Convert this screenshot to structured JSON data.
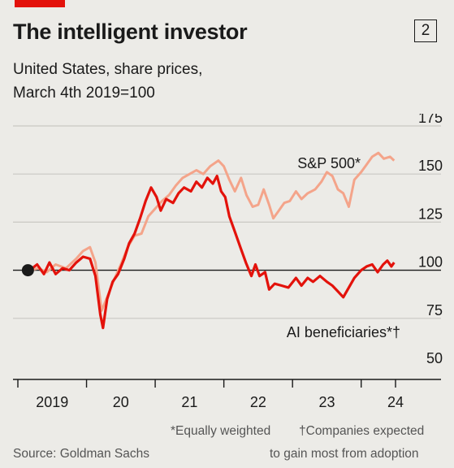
{
  "header": {
    "title": "The intelligent investor",
    "badge": "2",
    "subtitle_line1": "United States, share prices,",
    "subtitle_line2": "March 4th 2019=100"
  },
  "footnotes": {
    "equally_weighted": "*Equally weighted",
    "companies_expected_l1": "†Companies expected",
    "companies_expected_l2": "to gain most from adoption",
    "source": "Source: Goldman Sachs"
  },
  "colors": {
    "sp500": "#f4a48a",
    "ai": "#e3120b",
    "axis": "#1a1a1a",
    "grid": "#c9c8c3",
    "brand": "#e3120b"
  },
  "chart_data": {
    "type": "line",
    "x_ticks": [
      "2019",
      "20",
      "21",
      "22",
      "23",
      "24"
    ],
    "y_ticks": [
      "50",
      "75",
      "100",
      "125",
      "150",
      "175"
    ],
    "ylim": [
      50,
      175
    ],
    "xlim": [
      2019.0,
      2024.5
    ],
    "baseline": 100,
    "start_marker": {
      "x": 2019.17,
      "y": 100
    },
    "grid": true,
    "series": [
      {
        "name": "S&P 500*",
        "color": "#f4a48a",
        "points": [
          [
            2019.17,
            100
          ],
          [
            2019.3,
            101
          ],
          [
            2019.42,
            99
          ],
          [
            2019.55,
            103
          ],
          [
            2019.7,
            101
          ],
          [
            2019.85,
            106
          ],
          [
            2019.95,
            110
          ],
          [
            2020.05,
            112
          ],
          [
            2020.13,
            104
          ],
          [
            2020.22,
            79
          ],
          [
            2020.3,
            86
          ],
          [
            2020.4,
            95
          ],
          [
            2020.5,
            103
          ],
          [
            2020.6,
            112
          ],
          [
            2020.7,
            118
          ],
          [
            2020.8,
            119
          ],
          [
            2020.9,
            128
          ],
          [
            2021.0,
            132
          ],
          [
            2021.1,
            136
          ],
          [
            2021.2,
            139
          ],
          [
            2021.3,
            144
          ],
          [
            2021.4,
            148
          ],
          [
            2021.5,
            150
          ],
          [
            2021.6,
            152
          ],
          [
            2021.7,
            150
          ],
          [
            2021.8,
            154
          ],
          [
            2021.92,
            157
          ],
          [
            2022.0,
            154
          ],
          [
            2022.08,
            147
          ],
          [
            2022.16,
            141
          ],
          [
            2022.25,
            148
          ],
          [
            2022.33,
            139
          ],
          [
            2022.42,
            133
          ],
          [
            2022.5,
            134
          ],
          [
            2022.58,
            142
          ],
          [
            2022.66,
            134
          ],
          [
            2022.72,
            127
          ],
          [
            2022.8,
            131
          ],
          [
            2022.88,
            135
          ],
          [
            2022.96,
            136
          ],
          [
            2023.05,
            141
          ],
          [
            2023.13,
            137
          ],
          [
            2023.22,
            140
          ],
          [
            2023.33,
            142
          ],
          [
            2023.42,
            146
          ],
          [
            2023.5,
            151
          ],
          [
            2023.58,
            149
          ],
          [
            2023.66,
            142
          ],
          [
            2023.74,
            140
          ],
          [
            2023.82,
            133
          ],
          [
            2023.9,
            147
          ],
          [
            2024.0,
            151
          ],
          [
            2024.08,
            155
          ],
          [
            2024.16,
            159
          ],
          [
            2024.25,
            161
          ],
          [
            2024.33,
            158
          ],
          [
            2024.42,
            159
          ],
          [
            2024.48,
            157
          ]
        ]
      },
      {
        "name": "AI beneficiaries*†",
        "color": "#e3120b",
        "points": [
          [
            2019.17,
            100
          ],
          [
            2019.28,
            103
          ],
          [
            2019.38,
            98
          ],
          [
            2019.46,
            104
          ],
          [
            2019.55,
            98
          ],
          [
            2019.65,
            101
          ],
          [
            2019.75,
            100
          ],
          [
            2019.85,
            104
          ],
          [
            2019.95,
            107
          ],
          [
            2020.05,
            106
          ],
          [
            2020.13,
            97
          ],
          [
            2020.2,
            77
          ],
          [
            2020.24,
            70
          ],
          [
            2020.3,
            85
          ],
          [
            2020.38,
            94
          ],
          [
            2020.46,
            98
          ],
          [
            2020.55,
            106
          ],
          [
            2020.62,
            114
          ],
          [
            2020.7,
            119
          ],
          [
            2020.78,
            127
          ],
          [
            2020.86,
            136
          ],
          [
            2020.94,
            143
          ],
          [
            2021.02,
            138
          ],
          [
            2021.08,
            131
          ],
          [
            2021.16,
            137
          ],
          [
            2021.26,
            135
          ],
          [
            2021.34,
            140
          ],
          [
            2021.42,
            143
          ],
          [
            2021.52,
            141
          ],
          [
            2021.6,
            146
          ],
          [
            2021.68,
            143
          ],
          [
            2021.76,
            148
          ],
          [
            2021.84,
            145
          ],
          [
            2021.9,
            149
          ],
          [
            2021.96,
            141
          ],
          [
            2022.02,
            138
          ],
          [
            2022.08,
            128
          ],
          [
            2022.16,
            120
          ],
          [
            2022.24,
            112
          ],
          [
            2022.32,
            104
          ],
          [
            2022.4,
            97
          ],
          [
            2022.46,
            103
          ],
          [
            2022.52,
            97
          ],
          [
            2022.6,
            99
          ],
          [
            2022.66,
            90
          ],
          [
            2022.74,
            93
          ],
          [
            2022.84,
            92
          ],
          [
            2022.94,
            91
          ],
          [
            2023.05,
            96
          ],
          [
            2023.13,
            92
          ],
          [
            2023.22,
            96
          ],
          [
            2023.3,
            94
          ],
          [
            2023.4,
            97
          ],
          [
            2023.5,
            94
          ],
          [
            2023.58,
            92
          ],
          [
            2023.66,
            89
          ],
          [
            2023.74,
            86
          ],
          [
            2023.82,
            91
          ],
          [
            2023.9,
            96
          ],
          [
            2024.0,
            100
          ],
          [
            2024.08,
            102
          ],
          [
            2024.16,
            103
          ],
          [
            2024.24,
            99
          ],
          [
            2024.32,
            103
          ],
          [
            2024.38,
            105
          ],
          [
            2024.44,
            102
          ],
          [
            2024.48,
            104
          ]
        ]
      }
    ],
    "labels": {
      "sp500": "S&P 500*",
      "ai": "AI beneficiaries*†"
    }
  }
}
